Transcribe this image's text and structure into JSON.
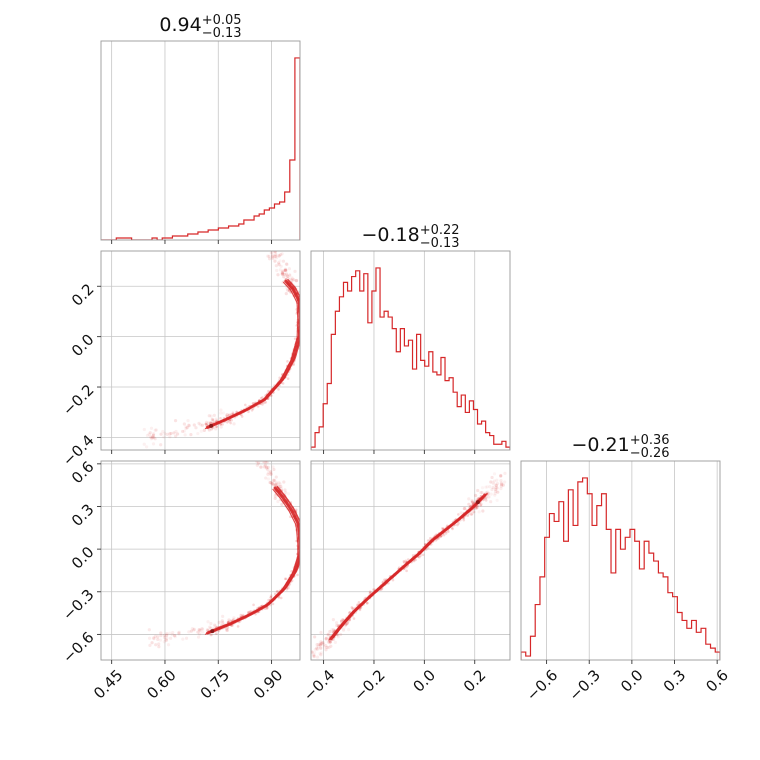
{
  "chart_data": {
    "type": "corner",
    "color": "#d62728",
    "parameters": [
      {
        "title": {
          "median": "0.94",
          "plus": "+0.05",
          "minus": "−0.13"
        },
        "range": [
          0.42,
          0.98
        ],
        "ticks": [
          0.45,
          0.6,
          0.75,
          0.9
        ],
        "ticklabels": [
          "0.45",
          "0.60",
          "0.75",
          "0.90"
        ]
      },
      {
        "title": {
          "median": "−0.18",
          "plus": "+0.22",
          "minus": "−0.13"
        },
        "range": [
          -0.45,
          0.34
        ],
        "ticks": [
          -0.4,
          -0.2,
          0.0,
          0.2
        ],
        "ticklabels": [
          "−0.4",
          "−0.2",
          "0.0",
          "0.2"
        ]
      },
      {
        "title": {
          "median": "−0.21",
          "plus": "+0.36",
          "minus": "−0.26"
        },
        "range": [
          -0.78,
          0.62
        ],
        "ticks": [
          -0.6,
          -0.3,
          0.0,
          0.3,
          0.6
        ],
        "ticklabels": [
          "−0.6",
          "−0.3",
          "0.0",
          "0.3",
          "0.6"
        ]
      }
    ],
    "histograms": [
      [
        0,
        0,
        0,
        1,
        1,
        1,
        0,
        0,
        0,
        0,
        1,
        0,
        1,
        1,
        2,
        2,
        2,
        3,
        3,
        4,
        4,
        5,
        5,
        6,
        6,
        7,
        7,
        8,
        10,
        10,
        12,
        13,
        15,
        16,
        18,
        19,
        24,
        40,
        91
      ],
      [
        1,
        6,
        8,
        16,
        23,
        40,
        48,
        53,
        58,
        55,
        60,
        62,
        55,
        61,
        44,
        55,
        63,
        46,
        48,
        46,
        42,
        34,
        42,
        36,
        38,
        28,
        40,
        31,
        29,
        34,
        27,
        26,
        32,
        24,
        25,
        20,
        15,
        19,
        13,
        17,
        14,
        9,
        10,
        6,
        5,
        2,
        2,
        3,
        1
      ],
      [
        2,
        1,
        6,
        14,
        21,
        31,
        37,
        35,
        40,
        30,
        43,
        34,
        45,
        46,
        42,
        34,
        39,
        42,
        33,
        22,
        33,
        28,
        31,
        33,
        30,
        23,
        30,
        27,
        25,
        22,
        21,
        17,
        16,
        12,
        10,
        8,
        10,
        7,
        8,
        4,
        3,
        2
      ]
    ],
    "curves": {
      "p1_vs_p0": {
        "x": [
          0.72,
          0.77,
          0.83,
          0.88,
          0.93,
          0.96,
          0.978,
          0.98,
          0.978,
          0.96,
          0.94
        ],
        "y": [
          -0.36,
          -0.33,
          -0.29,
          -0.25,
          -0.17,
          -0.09,
          0.0,
          0.07,
          0.14,
          0.19,
          0.22
        ]
      },
      "p2_vs_p0": {
        "x": [
          0.72,
          0.78,
          0.84,
          0.89,
          0.935,
          0.965,
          0.98,
          0.98,
          0.975,
          0.955,
          0.93,
          0.91
        ],
        "y": [
          -0.59,
          -0.53,
          -0.46,
          -0.39,
          -0.28,
          -0.16,
          -0.04,
          0.05,
          0.18,
          0.28,
          0.37,
          0.43
        ]
      },
      "p2_vs_p1": {
        "x": [
          -0.37,
          -0.33,
          -0.28,
          -0.22,
          -0.15,
          -0.08,
          -0.02,
          0.03,
          0.08,
          0.13,
          0.19,
          0.24
        ],
        "y": [
          -0.63,
          -0.54,
          -0.44,
          -0.34,
          -0.23,
          -0.12,
          -0.03,
          0.06,
          0.13,
          0.2,
          0.29,
          0.38
        ]
      }
    }
  }
}
